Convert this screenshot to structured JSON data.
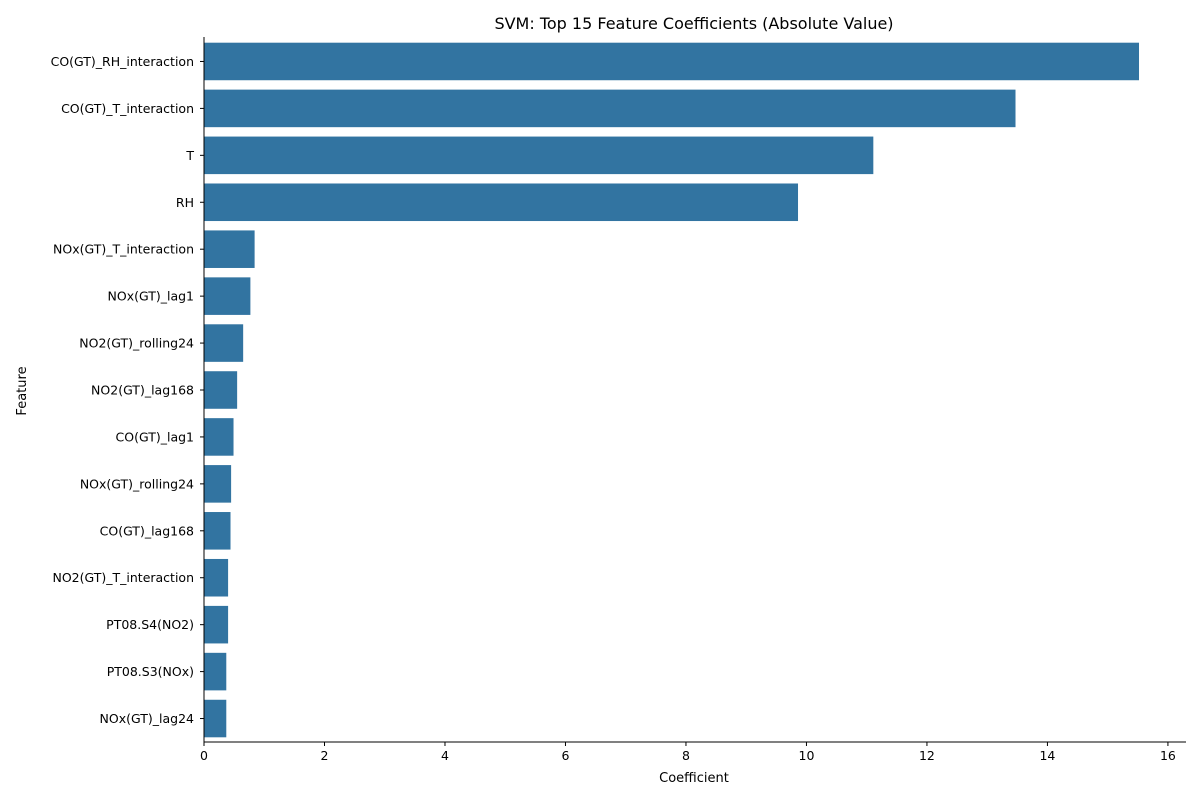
{
  "chart_data": {
    "type": "bar",
    "orientation": "horizontal",
    "title": "SVM: Top 15 Feature Coefficients (Absolute Value)",
    "xlabel": "Coefficient",
    "ylabel": "Feature",
    "xlim": [
      0,
      16.3
    ],
    "xticks": [
      0,
      2,
      4,
      6,
      8,
      10,
      12,
      14,
      16
    ],
    "grid": false,
    "color": "#3274a1",
    "categories": [
      "CO(GT)_RH_interaction",
      "CO(GT)_T_interaction",
      "T",
      "RH",
      "NOx(GT)_T_interaction",
      "NOx(GT)_lag1",
      "NO2(GT)_rolling24",
      "NO2(GT)_lag168",
      "CO(GT)_lag1",
      "NOx(GT)_rolling24",
      "CO(GT)_lag168",
      "NO2(GT)_T_interaction",
      "PT08.S4(NO2)",
      "PT08.S3(NOx)",
      "NOx(GT)_lag24"
    ],
    "values": [
      15.52,
      13.47,
      11.11,
      9.86,
      0.84,
      0.77,
      0.65,
      0.55,
      0.49,
      0.45,
      0.44,
      0.4,
      0.4,
      0.37,
      0.37
    ]
  }
}
